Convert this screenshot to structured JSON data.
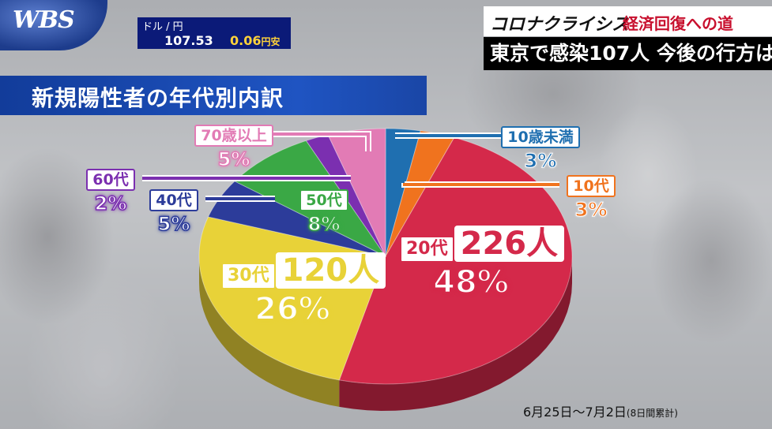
{
  "branding": {
    "logo": "WBS"
  },
  "ticker": {
    "pair": "ドル / 円",
    "rate": "107.53",
    "change": "0.06",
    "change_unit": "円安"
  },
  "series_banner": {
    "title": "コロナクライシス",
    "subtitle": "経済回復への道"
  },
  "headline": "東京で感染107人 今後の行方は",
  "chart_title": "新規陽性者の年代別内訳",
  "date_range": "6月25日〜7月2日",
  "date_note": "(8日間累計)",
  "chart_data": {
    "type": "pie",
    "title": "新規陽性者の年代別内訳",
    "slices": [
      {
        "label": "10歳未満",
        "percent": 3,
        "percent_text": "3%",
        "color": "#1f6fb0"
      },
      {
        "label": "10代",
        "percent": 3,
        "percent_text": "3%",
        "color": "#f0731e"
      },
      {
        "label": "20代",
        "percent": 48,
        "percent_text": "48%",
        "count_text": "226人",
        "count": 226,
        "color": "#d4294a"
      },
      {
        "label": "30代",
        "percent": 26,
        "percent_text": "26%",
        "count_text": "120人",
        "count": 120,
        "color": "#e8d238"
      },
      {
        "label": "40代",
        "percent": 5,
        "percent_text": "5%",
        "color": "#2c3c9a"
      },
      {
        "label": "50代",
        "percent": 8,
        "percent_text": "8%",
        "color": "#3aa845"
      },
      {
        "label": "60代",
        "percent": 2,
        "percent_text": "2%",
        "color": "#7b2fb0"
      },
      {
        "label": "70歳以上",
        "percent": 5,
        "percent_text": "5%",
        "color": "#e27bb5"
      }
    ]
  }
}
